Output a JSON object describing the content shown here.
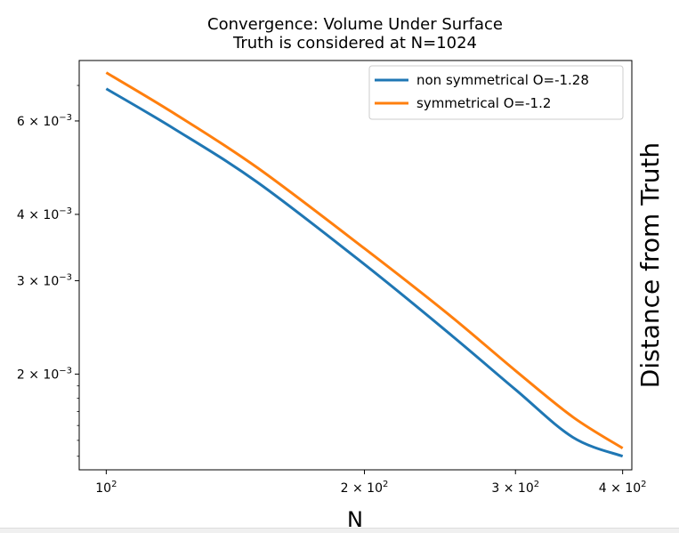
{
  "chart_data": {
    "type": "line",
    "title": "Convergence: Volume Under Surface",
    "subtitle": "Truth is considered at N=1024",
    "xlabel": "N",
    "ylabel": "Distance from Truth",
    "xscale": "log",
    "yscale": "log",
    "xlim": [
      93,
      410
    ],
    "ylim": [
      0.00132,
      0.0078
    ],
    "grid": false,
    "legend": "top-right",
    "x_ticks": [
      {
        "value": 100,
        "base": "10",
        "exp": "2"
      },
      {
        "value": 200,
        "base": "2 × 10",
        "exp": "2"
      },
      {
        "value": 300,
        "base": "3 × 10",
        "exp": "2"
      },
      {
        "value": 400,
        "base": "4 × 10",
        "exp": "2"
      }
    ],
    "y_ticks": [
      {
        "value": 0.006,
        "base": "6 × 10",
        "exp": "−3"
      },
      {
        "value": 0.004,
        "base": "4 × 10",
        "exp": "−3"
      },
      {
        "value": 0.003,
        "base": "3 × 10",
        "exp": "−3"
      },
      {
        "value": 0.002,
        "base": "2 × 10",
        "exp": "−3"
      }
    ],
    "series": [
      {
        "name": "non symmetrical O=-1.28",
        "color": "#1f77b4",
        "x": [
          100,
          120,
          150,
          200,
          250,
          300,
          350,
          400
        ],
        "y": [
          0.0069,
          0.0058,
          0.0046,
          0.00322,
          0.0024,
          0.00187,
          0.00152,
          0.0014
        ]
      },
      {
        "name": "symmetrical O=-1.2",
        "color": "#ff7f0e",
        "x": [
          100,
          120,
          150,
          200,
          250,
          300,
          350,
          400
        ],
        "y": [
          0.0074,
          0.0062,
          0.0049,
          0.00345,
          0.0026,
          0.00203,
          0.00166,
          0.00145
        ]
      }
    ]
  }
}
